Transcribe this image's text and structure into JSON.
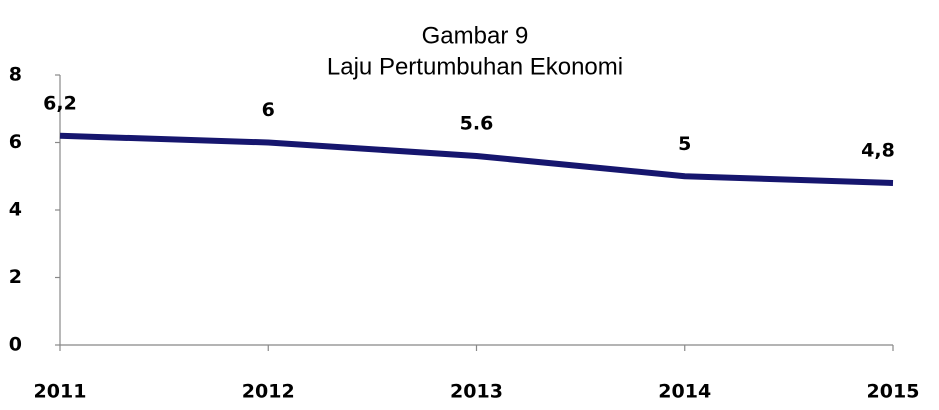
{
  "chart_data": {
    "type": "line",
    "title": "Gambar 9",
    "subtitle": "Laju Pertumbuhan Ekonomi",
    "categories": [
      "2011",
      "2012",
      "2013",
      "2014",
      "2015"
    ],
    "values": [
      6.2,
      6,
      5.6,
      5,
      4.8
    ],
    "value_labels": [
      "6,2",
      "6",
      "5.6",
      "5",
      "4,8"
    ],
    "color": "#16166e",
    "ylim": [
      0,
      8
    ],
    "yticks": [
      0,
      2,
      4,
      6,
      8
    ],
    "grid": false
  }
}
